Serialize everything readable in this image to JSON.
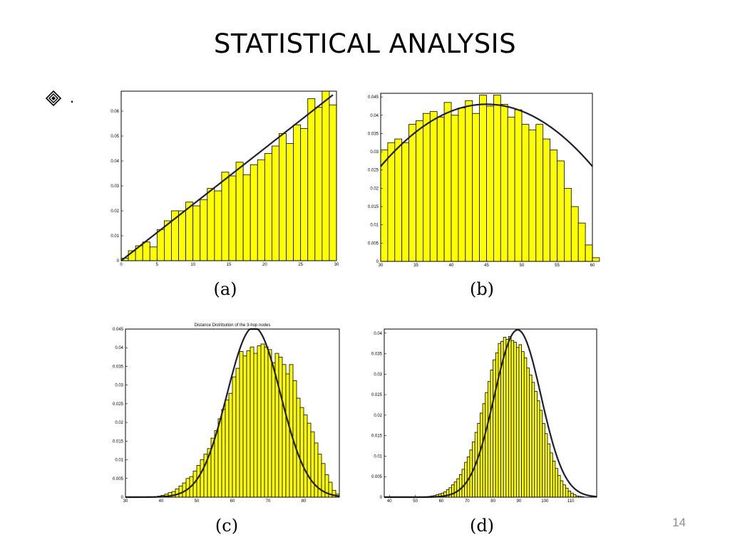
{
  "slide": {
    "title": "STATISTICAL  ANALYSIS",
    "bullet_text": ".",
    "bullet_icon": "diamond-bullet-icon",
    "page_number": "14"
  },
  "colors": {
    "bar_fill": "#ffff00",
    "bar_stroke": "#000000",
    "curve": "#1f1f33"
  },
  "chart_data": [
    {
      "type": "bar",
      "caption": "(a)",
      "title": "",
      "xlim": [
        0,
        30
      ],
      "ylim": [
        0,
        0.068
      ],
      "xticks": [
        0,
        5,
        10,
        15,
        20,
        25,
        30
      ],
      "yticks": [
        0,
        0.01,
        0.02,
        0.03,
        0.04,
        0.05,
        0.06
      ],
      "ytick_labels": [
        "0",
        "0.01",
        "0.02",
        "0.03",
        "0.04",
        "0.05",
        "0.06"
      ],
      "bin_start": 0,
      "bin_width": 1,
      "values": [
        0.001,
        0.004,
        0.006,
        0.0075,
        0.0055,
        0.0125,
        0.016,
        0.02,
        0.02,
        0.0235,
        0.022,
        0.0245,
        0.029,
        0.028,
        0.0355,
        0.034,
        0.0395,
        0.0345,
        0.0385,
        0.0405,
        0.043,
        0.046,
        0.051,
        0.047,
        0.0545,
        0.053,
        0.065,
        0.0615,
        0.068,
        0.0625
      ],
      "curve": {
        "kind": "line",
        "points": [
          [
            0,
            0
          ],
          [
            29.5,
            0.0665
          ]
        ]
      }
    },
    {
      "type": "bar",
      "caption": "(b)",
      "title": "",
      "xlim": [
        30,
        60
      ],
      "ylim": [
        0,
        0.046
      ],
      "xticks": [
        30,
        35,
        40,
        45,
        50,
        55,
        60
      ],
      "yticks": [
        0,
        0.005,
        0.01,
        0.015,
        0.02,
        0.025,
        0.03,
        0.035,
        0.04,
        0.045
      ],
      "ytick_labels": [
        "0",
        "0.005",
        "0.01",
        "0.015",
        "0.02",
        "0.025",
        "0.03",
        "0.035",
        "0.04",
        "0.045"
      ],
      "bin_start": 30,
      "bin_width": 1,
      "values": [
        0.0305,
        0.0325,
        0.0335,
        0.0325,
        0.0375,
        0.0385,
        0.0405,
        0.041,
        0.0395,
        0.0435,
        0.04,
        0.042,
        0.044,
        0.0405,
        0.0455,
        0.0425,
        0.0455,
        0.043,
        0.0395,
        0.0415,
        0.0375,
        0.036,
        0.0375,
        0.0335,
        0.0305,
        0.0275,
        0.02,
        0.015,
        0.0105,
        0.0045,
        0.001
      ],
      "curve": {
        "kind": "poly2",
        "peak_x": 45,
        "peak_y": 0.043,
        "at_x0": 30,
        "y_at_x0": 0.026
      }
    },
    {
      "type": "bar",
      "caption": "(c)",
      "title": "Distance Distribution of the 3-hop nodes",
      "xlim": [
        30,
        90
      ],
      "ylim": [
        0,
        0.045
      ],
      "xticks": [
        30,
        40,
        50,
        60,
        70,
        80
      ],
      "yticks": [
        0,
        0.005,
        0.01,
        0.015,
        0.02,
        0.025,
        0.03,
        0.035,
        0.04,
        0.045
      ],
      "ytick_labels": [
        "0",
        "0.005",
        "0.01",
        "0.015",
        "0.02",
        "0.025",
        "0.03",
        "0.035",
        "0.04",
        "0.045"
      ],
      "bin_start": 30,
      "bin_width": 1,
      "values": [
        0,
        0,
        0,
        0,
        0,
        0,
        0,
        0,
        0.0001,
        0.0003,
        0.0005,
        0.0008,
        0.0012,
        0.0015,
        0.0022,
        0.003,
        0.0038,
        0.005,
        0.0055,
        0.007,
        0.0085,
        0.01,
        0.0115,
        0.013,
        0.0158,
        0.0178,
        0.021,
        0.0235,
        0.026,
        0.0278,
        0.0322,
        0.0345,
        0.039,
        0.0378,
        0.0392,
        0.0402,
        0.0385,
        0.0405,
        0.041,
        0.0402,
        0.0395,
        0.036,
        0.0385,
        0.0375,
        0.0355,
        0.033,
        0.0355,
        0.0312,
        0.0265,
        0.024,
        0.022,
        0.0198,
        0.0175,
        0.0145,
        0.0115,
        0.009,
        0.006,
        0.004,
        0.0018,
        0.0008
      ],
      "curve": {
        "kind": "gauss",
        "mu": 66,
        "sigma": 7.5,
        "peak_y": 0.0455
      }
    },
    {
      "type": "bar",
      "caption": "(d)",
      "title": "",
      "xlim": [
        38,
        120
      ],
      "ylim": [
        0,
        0.041
      ],
      "xticks": [
        40,
        50,
        60,
        70,
        80,
        90,
        100,
        110
      ],
      "yticks": [
        0,
        0.005,
        0.01,
        0.015,
        0.02,
        0.025,
        0.03,
        0.035,
        0.04
      ],
      "ytick_labels": [
        "0",
        "0.005",
        "0.01",
        "0.015",
        "0.02",
        "0.025",
        "0.03",
        "0.035",
        "0.04"
      ],
      "bin_start": 55,
      "bin_width": 1,
      "values": [
        0.0002,
        0.0003,
        0.0004,
        0.0006,
        0.0008,
        0.001,
        0.0013,
        0.0018,
        0.0023,
        0.003,
        0.0037,
        0.0045,
        0.0055,
        0.0068,
        0.0085,
        0.0098,
        0.0115,
        0.0135,
        0.0158,
        0.018,
        0.0205,
        0.0228,
        0.0255,
        0.0282,
        0.031,
        0.0335,
        0.0352,
        0.0375,
        0.038,
        0.039,
        0.0385,
        0.0392,
        0.0382,
        0.0378,
        0.0365,
        0.0372,
        0.0355,
        0.034,
        0.0315,
        0.0298,
        0.028,
        0.0258,
        0.0235,
        0.0212,
        0.018,
        0.0155,
        0.013,
        0.0108,
        0.0088,
        0.007,
        0.0053,
        0.004,
        0.003,
        0.0022,
        0.0015,
        0.001,
        0.0006,
        0.0003,
        0.0002,
        0.0001
      ],
      "curve": {
        "kind": "gauss",
        "mu": 89.5,
        "sigma": 9,
        "peak_y": 0.0408
      }
    }
  ]
}
